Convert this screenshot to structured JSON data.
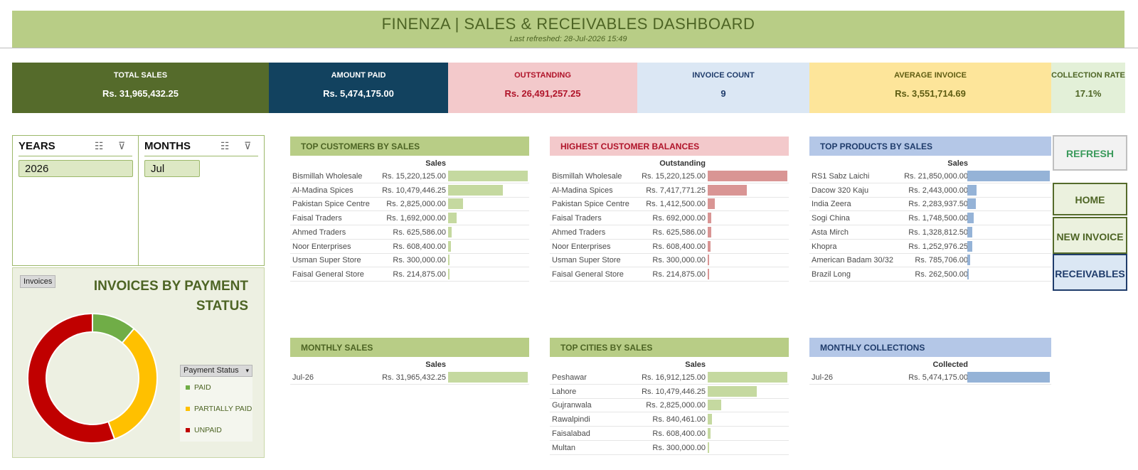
{
  "header": {
    "title": "FINENZA | SALES & RECEIVABLES DASHBOARD",
    "refreshed": "Last refreshed: 28-Jul-2026 15:49"
  },
  "kpis": [
    {
      "label": "TOTAL SALES",
      "value": "Rs. 31,965,432.25",
      "bg": "#556b2b",
      "fg": "#ffffff"
    },
    {
      "label": "AMOUNT PAID",
      "value": "Rs. 5,474,175.00",
      "bg": "#12425f",
      "fg": "#ffffff"
    },
    {
      "label": "OUTSTANDING",
      "value": "Rs. 26,491,257.25",
      "bg": "#f3c9cb",
      "fg": "#b0142a"
    },
    {
      "label": "INVOICE COUNT",
      "value": "9",
      "bg": "#dbe7f4",
      "fg": "#1f3c6b"
    },
    {
      "label": "AVERAGE INVOICE",
      "value": "Rs. 3,551,714.69",
      "bg": "#fde59a",
      "fg": "#5e5c12"
    },
    {
      "label": "COLLECTION RATE",
      "value": "17.1%",
      "bg": "#e3f0d8",
      "fg": "#4d6424"
    }
  ],
  "slicers": {
    "years": {
      "title": "YEARS",
      "selected": "2026"
    },
    "months": {
      "title": "MONTHS",
      "selected": "Jul"
    }
  },
  "donut": {
    "tag": "Invoices",
    "title": "INVOICES BY PAYMENT STATUS",
    "legend_title": "Payment Status",
    "legend_dropdown": "▾",
    "segments": [
      {
        "label": "PAID",
        "count": 1,
        "color": "#70ad47"
      },
      {
        "label": "PARTIALLY PAID",
        "count": 3,
        "color": "#ffc000"
      },
      {
        "label": "UNPAID",
        "count": 5,
        "color": "#c00000"
      }
    ]
  },
  "tables": {
    "top_customers": {
      "title": "TOP CUSTOMERS BY SALES",
      "column": "Sales",
      "head_bg": "#b8cd86",
      "head_fg": "#4d6424",
      "bar": "#c5d9a0",
      "rows": [
        {
          "name": "Bismillah Wholesale",
          "amount": "Rs. 15,220,125.00",
          "value": 15220125.0
        },
        {
          "name": "Al-Madina Spices",
          "amount": "Rs. 10,479,446.25",
          "value": 10479446.25
        },
        {
          "name": "Pakistan Spice Centre",
          "amount": "Rs. 2,825,000.00",
          "value": 2825000.0
        },
        {
          "name": "Faisal Traders",
          "amount": "Rs. 1,692,000.00",
          "value": 1692000.0
        },
        {
          "name": "Ahmed Traders",
          "amount": "Rs. 625,586.00",
          "value": 625586.0
        },
        {
          "name": "Noor Enterprises",
          "amount": "Rs. 608,400.00",
          "value": 608400.0
        },
        {
          "name": "Usman Super Store",
          "amount": "Rs. 300,000.00",
          "value": 300000.0
        },
        {
          "name": "Faisal General Store",
          "amount": "Rs. 214,875.00",
          "value": 214875.0
        }
      ]
    },
    "highest_balances": {
      "title": "HIGHEST CUSTOMER BALANCES",
      "column": "Outstanding",
      "head_bg": "#f3c9cb",
      "head_fg": "#b0142a",
      "bar": "#d99594",
      "rows": [
        {
          "name": "Bismillah Wholesale",
          "amount": "Rs. 15,220,125.00",
          "value": 15220125.0
        },
        {
          "name": "Al-Madina Spices",
          "amount": "Rs. 7,417,771.25",
          "value": 7417771.25
        },
        {
          "name": "Pakistan Spice Centre",
          "amount": "Rs. 1,412,500.00",
          "value": 1412500.0
        },
        {
          "name": "Faisal Traders",
          "amount": "Rs. 692,000.00",
          "value": 692000.0
        },
        {
          "name": "Ahmed Traders",
          "amount": "Rs. 625,586.00",
          "value": 625586.0
        },
        {
          "name": "Noor Enterprises",
          "amount": "Rs. 608,400.00",
          "value": 608400.0
        },
        {
          "name": "Usman Super Store",
          "amount": "Rs. 300,000.00",
          "value": 300000.0
        },
        {
          "name": "Faisal General Store",
          "amount": "Rs. 214,875.00",
          "value": 214875.0
        }
      ]
    },
    "top_products": {
      "title": "TOP PRODUCTS BY SALES",
      "column": "Sales",
      "head_bg": "#b4c7e7",
      "head_fg": "#1f3c6b",
      "bar": "#95b3d7",
      "rows": [
        {
          "name": "RS1 Sabz Laichi",
          "amount": "Rs. 21,850,000.00",
          "value": 21850000.0
        },
        {
          "name": "Dacow 320 Kaju",
          "amount": "Rs. 2,443,000.00",
          "value": 2443000.0
        },
        {
          "name": "India Zeera",
          "amount": "Rs. 2,283,937.50",
          "value": 2283937.5
        },
        {
          "name": "Sogi China",
          "amount": "Rs. 1,748,500.00",
          "value": 1748500.0
        },
        {
          "name": "Asta Mirch",
          "amount": "Rs. 1,328,812.50",
          "value": 1328812.5
        },
        {
          "name": "Khopra",
          "amount": "Rs. 1,252,976.25",
          "value": 1252976.25
        },
        {
          "name": "American Badam 30/32",
          "amount": "Rs. 785,706.00",
          "value": 785706.0
        },
        {
          "name": "Brazil Long",
          "amount": "Rs. 262,500.00",
          "value": 262500.0
        }
      ]
    },
    "monthly_sales": {
      "title": "MONTHLY SALES",
      "column": "Sales",
      "head_bg": "#b8cd86",
      "head_fg": "#4d6424",
      "bar": "#c5d9a0",
      "rows": [
        {
          "name": "Jul-26",
          "amount": "Rs. 31,965,432.25",
          "value": 31965432.25
        }
      ]
    },
    "top_cities": {
      "title": "TOP CITIES BY SALES",
      "column": "Sales",
      "head_bg": "#b8cd86",
      "head_fg": "#4d6424",
      "bar": "#c5d9a0",
      "rows": [
        {
          "name": "Peshawar",
          "amount": "Rs. 16,912,125.00",
          "value": 16912125.0
        },
        {
          "name": "Lahore",
          "amount": "Rs. 10,479,446.25",
          "value": 10479446.25
        },
        {
          "name": "Gujranwala",
          "amount": "Rs. 2,825,000.00",
          "value": 2825000.0
        },
        {
          "name": "Rawalpindi",
          "amount": "Rs. 840,461.00",
          "value": 840461.0
        },
        {
          "name": "Faisalabad",
          "amount": "Rs. 608,400.00",
          "value": 608400.0
        },
        {
          "name": "Multan",
          "amount": "Rs. 300,000.00",
          "value": 300000.0
        }
      ]
    },
    "monthly_collections": {
      "title": "MONTHLY COLLECTIONS",
      "column": "Collected",
      "head_bg": "#b4c7e7",
      "head_fg": "#1f3c6b",
      "bar": "#95b3d7",
      "rows": [
        {
          "name": "Jul-26",
          "amount": "Rs. 5,474,175.00",
          "value": 5474175.0
        }
      ]
    }
  },
  "buttons": [
    {
      "key": "refresh",
      "label": "REFRESH",
      "bg": "#f2f2f2",
      "fg": "#3a9a5b",
      "border": "#bfbfbf"
    },
    {
      "key": "home",
      "label": "HOME",
      "bg": "#ebf1de",
      "fg": "#4d6424",
      "border": "#556b2b"
    },
    {
      "key": "new-invoice",
      "label": "NEW INVOICE",
      "bg": "#ebf1de",
      "fg": "#4d6424",
      "border": "#556b2b"
    },
    {
      "key": "receivables",
      "label": "RECEIVABLES",
      "bg": "#dbe7f4",
      "fg": "#1f3c6b",
      "border": "#1f3c6b"
    }
  ]
}
